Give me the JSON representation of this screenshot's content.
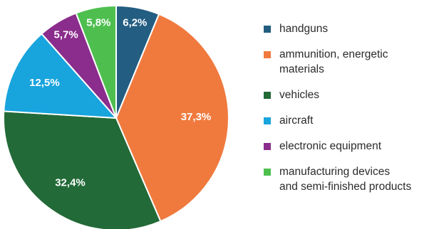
{
  "chart_data": {
    "type": "pie",
    "title": "",
    "start_angle_deg": 0,
    "direction": "clockwise",
    "slices": [
      {
        "label": "handguns",
        "value": 6.2,
        "value_label": "6,2%",
        "color": "#235d82"
      },
      {
        "label": "ammunition, energetic materials",
        "value": 37.3,
        "value_label": "37,3%",
        "color": "#f07a3e"
      },
      {
        "label": "vehicles",
        "value": 32.4,
        "value_label": "32,4%",
        "color": "#226a37"
      },
      {
        "label": "aircraft",
        "value": 12.5,
        "value_label": "12,5%",
        "color": "#18a4dd"
      },
      {
        "label": "electronic equipment",
        "value": 5.7,
        "value_label": "5,7%",
        "color": "#8a2d8c"
      },
      {
        "label": "manufacturing devices and semi-finished products",
        "value": 5.8,
        "value_label": "5,8%",
        "color": "#4ebf4f"
      }
    ],
    "legend": {
      "position": "right",
      "items": [
        {
          "line1": "handguns",
          "line2": ""
        },
        {
          "line1": "ammunition, energetic",
          "line2": "materials"
        },
        {
          "line1": "vehicles",
          "line2": ""
        },
        {
          "line1": "aircraft",
          "line2": ""
        },
        {
          "line1": "electronic equipment",
          "line2": ""
        },
        {
          "line1": "manufacturing devices",
          "line2": "and semi-finished products"
        }
      ]
    }
  }
}
